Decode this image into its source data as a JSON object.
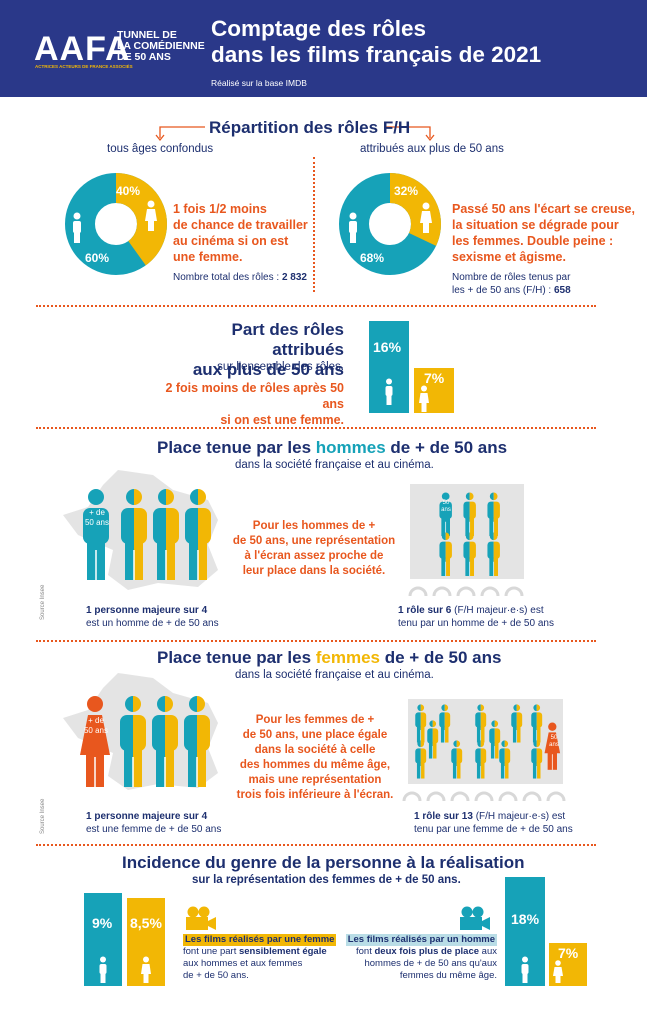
{
  "colors": {
    "navy": "#2a3889",
    "teal": "#16a2b8",
    "yellow": "#f2b705",
    "orange": "#e8571e"
  },
  "header": {
    "logo_text": "AAFA",
    "logo_line1": "TUNNEL DE",
    "logo_line2": "LA COMÉDIENNE",
    "logo_line3": "DE 50 ANS",
    "logo_sub": "ACTRICES ACTEURS DE FRANCE ASSOCIÉS",
    "title_line1": "Comptage des rôles",
    "title_line2": "dans les films français de 2021",
    "subtitle": "Réalisé sur la base IMDB"
  },
  "repartition": {
    "title": "Répartition des rôles F/H",
    "left_label": "tous âges confondus",
    "right_label": "attribués aux plus de 50 ans",
    "left": {
      "men_pct": "60%",
      "women_pct": "40%",
      "men_value": 60,
      "women_value": 40,
      "text": [
        "1 fois 1/2 moins",
        "de chance de travailler",
        "au cinéma si on est",
        "une femme."
      ],
      "total_label": "Nombre total des rôles :",
      "total_value": "2 832"
    },
    "right": {
      "men_pct": "68%",
      "women_pct": "32%",
      "men_value": 68,
      "women_value": 32,
      "text": [
        "Passé 50 ans l'écart se creuse,",
        "la situation se dégrade pour",
        "les femmes. Double peine :",
        "sexisme et âgisme."
      ],
      "total_label_1": "Nombre de rôles tenus par",
      "total_label_2": "les + de 50 ans (F/H) :",
      "total_value": "658"
    }
  },
  "part": {
    "title_1": "Part des rôles attribués",
    "title_2": "aux plus de 50 ans",
    "sub": "sur l'ensemble des rôles.",
    "orange_1": "2 fois moins de rôles après 50 ans",
    "orange_2": "si on est une femme.",
    "men_pct": "16%",
    "women_pct": "7%",
    "men_value": 16,
    "women_value": 7
  },
  "hommes": {
    "title_a": "Place tenue par les ",
    "title_b": "hommes",
    "title_c": " de + de 50 ans",
    "sub": "dans la société française et au cinéma.",
    "badge": "+ de\n50 ans",
    "badge_l1": "+ de",
    "badge_l2": "50 ans",
    "mid_text": [
      "Pour les hommes de +",
      "de 50 ans, une représentation",
      "à l'écran assez proche de",
      "leur place dans la société."
    ],
    "left_caption_1": "1 personne majeure sur 4",
    "left_caption_2": "est un homme de + de 50 ans",
    "right_caption_1a": "1 rôle sur 6",
    "right_caption_1b": " (F/H majeur·e·s) est",
    "right_caption_2": "tenu par un homme de + de 50 ans",
    "source": "Source Insee",
    "mini_badge_1": "50",
    "mini_badge_2": "ans"
  },
  "femmes": {
    "title_a": "Place tenue par les ",
    "title_b": "femmes",
    "title_c": " de + de 50 ans",
    "sub": "dans la société française et au cinéma.",
    "badge_l1": "+ de",
    "badge_l2": "50 ans",
    "mid_text": [
      "Pour les femmes de +",
      "de 50 ans, une place égale",
      "dans la société à celle",
      "des hommes du même âge,",
      "mais une représentation",
      "trois fois inférieure à l'écran."
    ],
    "left_caption_1": "1 personne majeure sur 4",
    "left_caption_2": "est une femme de + de 50 ans",
    "right_caption_1a": "1 rôle sur 13",
    "right_caption_1b": " (F/H majeur·e·s) est",
    "right_caption_2": "tenu par une femme de + de 50 ans",
    "source": "Source Insee",
    "mini_badge_1": "50",
    "mini_badge_2": "ans"
  },
  "incidence": {
    "title": "Incidence du genre de la personne à la réalisation",
    "sub": "sur la représentation des femmes de + de 50 ans.",
    "female_dir": {
      "men_pct": "9%",
      "women_pct": "8,5%",
      "men_value": 9,
      "women_value": 8.5,
      "heading": "Les films réalisés par une femme",
      "text_1a": "font une part ",
      "text_1b": "sensiblement égale",
      "text_2": "aux hommes et aux femmes",
      "text_3": "de + de 50 ans."
    },
    "male_dir": {
      "men_pct": "18%",
      "women_pct": "7%",
      "men_value": 18,
      "women_value": 7,
      "heading": "Les films réalisés par un homme",
      "text_1a": "font ",
      "text_1b": "deux fois plus de place",
      "text_1c": " aux",
      "text_2": "hommes de + de 50 ans qu'aux",
      "text_3": "femmes du même âge."
    }
  }
}
